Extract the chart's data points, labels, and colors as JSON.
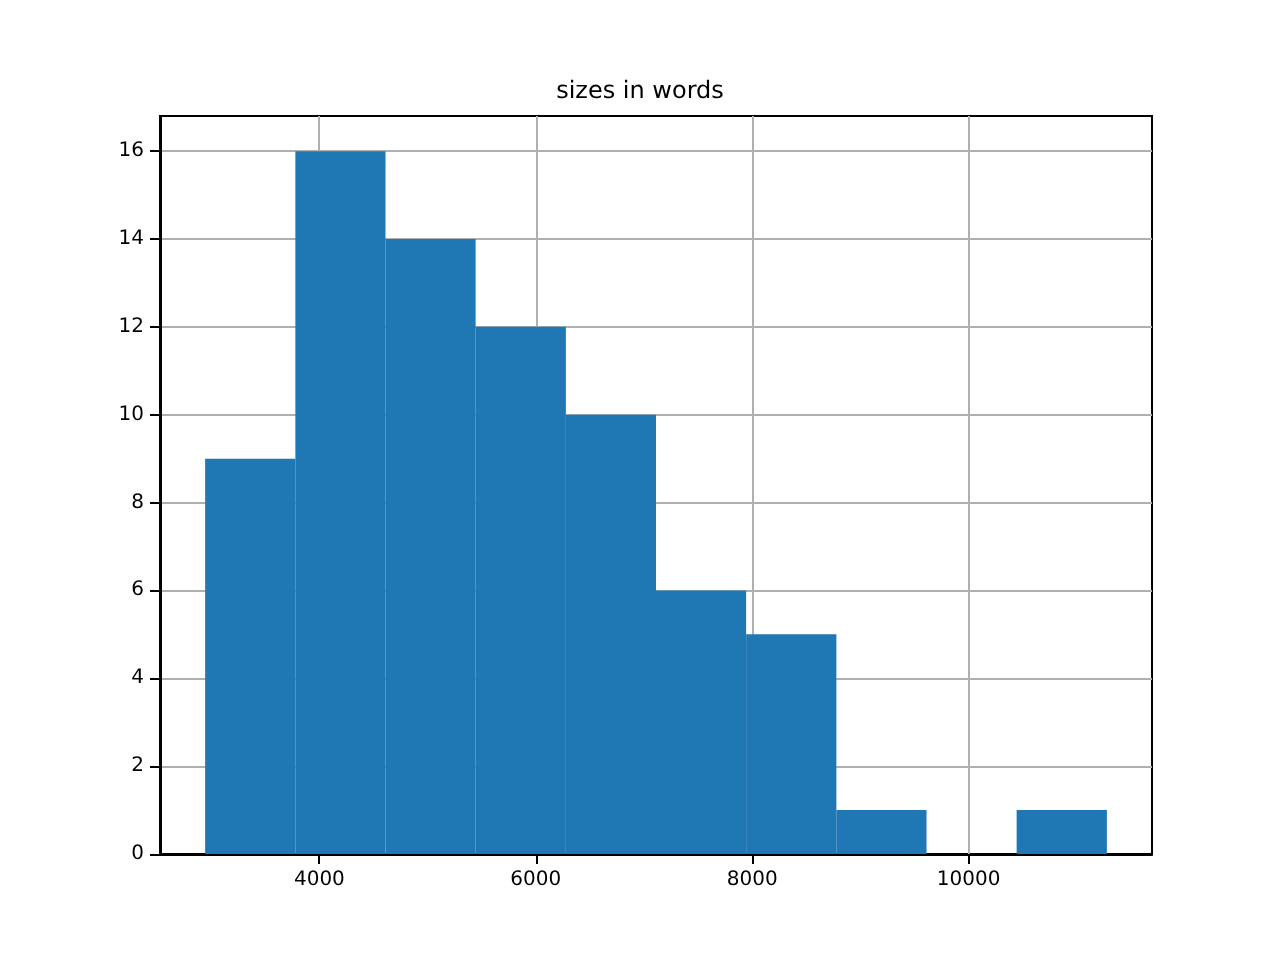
{
  "chart_data": {
    "type": "histogram",
    "title": "sizes in words",
    "bins": [
      2944,
      3778,
      4611,
      5444,
      6278,
      7111,
      7944,
      8778,
      9611,
      10444,
      11278
    ],
    "values": [
      9,
      16,
      14,
      12,
      10,
      6,
      5,
      1,
      0,
      1
    ],
    "color": "#1f77b4",
    "xlim": [
      2527,
      11695
    ],
    "xticks": [
      4000,
      6000,
      8000,
      10000
    ],
    "ylim": [
      0,
      16.8
    ],
    "yticks": [
      0,
      2,
      4,
      6,
      8,
      10,
      12,
      14,
      16
    ],
    "grid": true
  }
}
